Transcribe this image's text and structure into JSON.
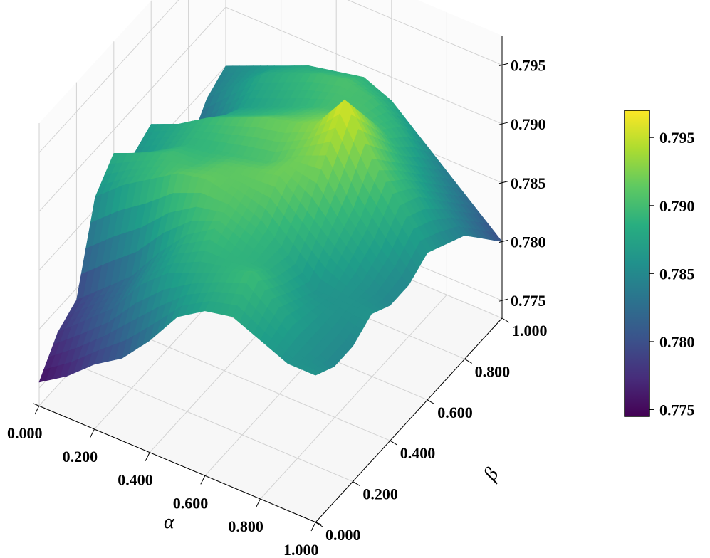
{
  "chart_data": {
    "type": "surface",
    "xlabel": "α",
    "ylabel": "β",
    "xlim": [
      0,
      1
    ],
    "ylim": [
      0,
      1
    ],
    "zlim": [
      0.7735,
      0.7975
    ],
    "x_ticks": [
      "0.000",
      "0.200",
      "0.400",
      "0.600",
      "0.800",
      "1.000"
    ],
    "y_ticks": [
      "0.000",
      "0.200",
      "0.400",
      "0.600",
      "0.800",
      "1.000"
    ],
    "z_ticks": [
      "0.775",
      "0.780",
      "0.785",
      "0.790",
      "0.795"
    ],
    "colorbar": {
      "ticks": [
        "0.775",
        "0.780",
        "0.785",
        "0.790",
        "0.795"
      ],
      "range": [
        0.7745,
        0.797
      ],
      "colormap": "viridis"
    },
    "grid": true,
    "surface_x": [
      0.0,
      0.1,
      0.2,
      0.3,
      0.4,
      0.5,
      0.6,
      0.7,
      0.8,
      0.9,
      1.0
    ],
    "surface_y": [
      0.0,
      0.1,
      0.2,
      0.3,
      0.4,
      0.5,
      0.6,
      0.7,
      0.8,
      0.9,
      1.0
    ],
    "surface_z": [
      [
        0.7755,
        0.777,
        0.779,
        0.7805,
        0.783,
        0.786,
        0.7875,
        0.788,
        0.787,
        0.786,
        0.786
      ],
      [
        0.778,
        0.78,
        0.782,
        0.785,
        0.787,
        0.788,
        0.789,
        0.79,
        0.788,
        0.786,
        0.785
      ],
      [
        0.779,
        0.781,
        0.783,
        0.786,
        0.7885,
        0.79,
        0.789,
        0.7885,
        0.787,
        0.786,
        0.785
      ],
      [
        0.786,
        0.788,
        0.7895,
        0.791,
        0.7915,
        0.791,
        0.79,
        0.788,
        0.786,
        0.786,
        0.786
      ],
      [
        0.788,
        0.789,
        0.79,
        0.79,
        0.791,
        0.7915,
        0.792,
        0.79,
        0.788,
        0.786,
        0.785
      ],
      [
        0.786,
        0.7875,
        0.789,
        0.7895,
        0.79,
        0.7905,
        0.792,
        0.793,
        0.7895,
        0.787,
        0.785
      ],
      [
        0.787,
        0.788,
        0.7895,
        0.7905,
        0.7915,
        0.792,
        0.793,
        0.796,
        0.792,
        0.789,
        0.786
      ],
      [
        0.7835,
        0.786,
        0.788,
        0.789,
        0.79,
        0.791,
        0.792,
        0.793,
        0.79,
        0.788,
        0.785
      ],
      [
        0.7815,
        0.7845,
        0.787,
        0.788,
        0.789,
        0.79,
        0.7905,
        0.79,
        0.788,
        0.786,
        0.784
      ],
      [
        0.784,
        0.786,
        0.788,
        0.789,
        0.79,
        0.7905,
        0.79,
        0.7885,
        0.786,
        0.784,
        0.782
      ],
      [
        0.785,
        0.786,
        0.787,
        0.788,
        0.7885,
        0.789,
        0.788,
        0.786,
        0.784,
        0.782,
        0.78
      ]
    ]
  }
}
